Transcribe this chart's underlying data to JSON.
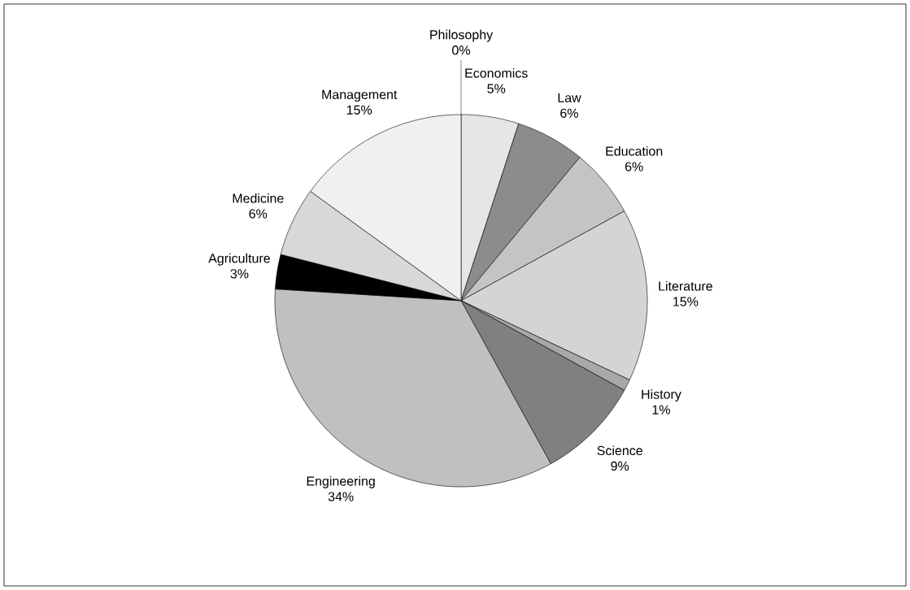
{
  "chart_data": {
    "type": "pie",
    "categories": [
      "Economics",
      "Law",
      "Education",
      "Literature",
      "History",
      "Science",
      "Engineering",
      "Agriculture",
      "Medicine",
      "Management",
      "Philosophy"
    ],
    "values": [
      5,
      6,
      6,
      15,
      1,
      9,
      34,
      3,
      6,
      15,
      0
    ],
    "value_labels": [
      "5%",
      "6%",
      "6%",
      "15%",
      "1%",
      "9%",
      "34%",
      "3%",
      "6%",
      "15%",
      "0%"
    ],
    "colors": [
      "#e6e6e6",
      "#8c8c8c",
      "#c4c4c4",
      "#d4d4d4",
      "#a8a8a8",
      "#808080",
      "#c0c0c0",
      "#000000",
      "#d8d8d8",
      "#f0f0f0",
      "#ffffff"
    ]
  }
}
